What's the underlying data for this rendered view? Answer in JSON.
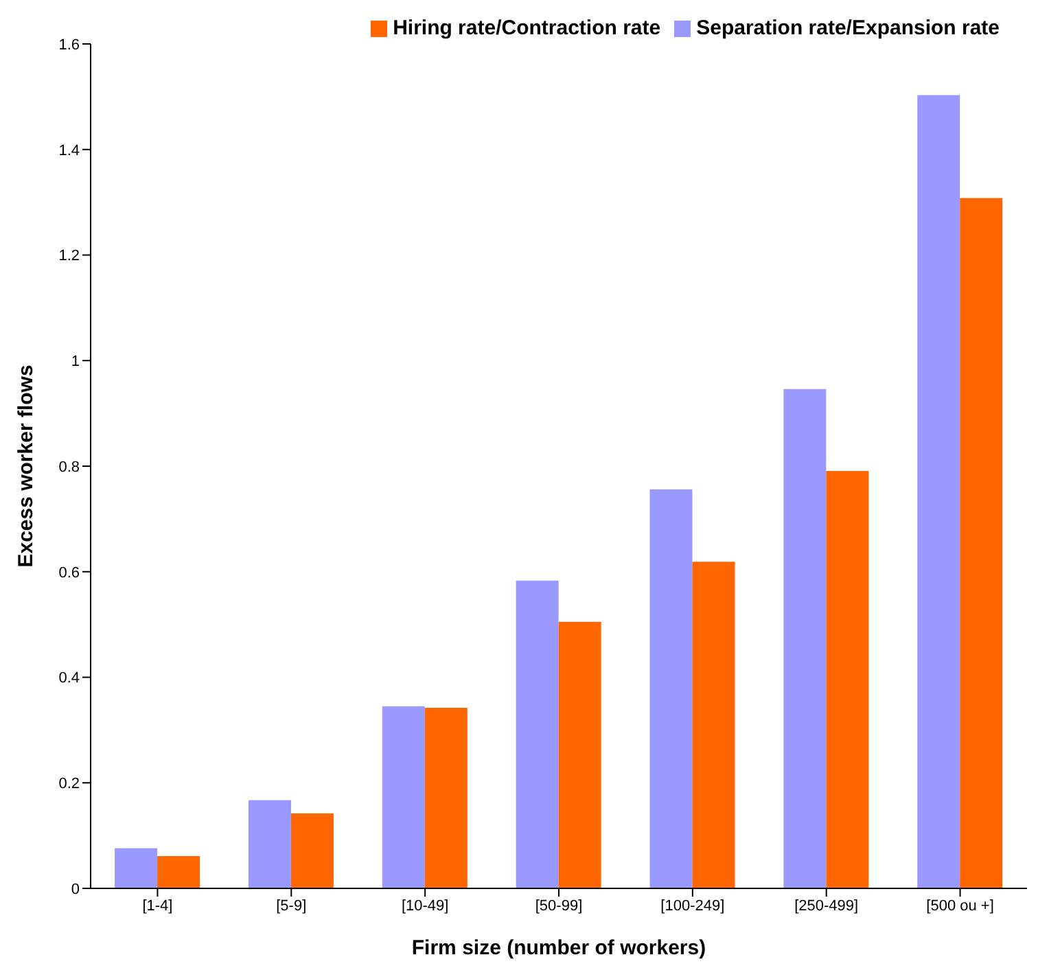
{
  "chart_data": {
    "type": "bar",
    "xlabel": "Firm size (number of workers)",
    "ylabel": "Excess worker flows",
    "categories": [
      "[1-4]",
      "[5-9]",
      "[10-49]",
      "[50-99]",
      "[100-249]",
      "[250-499]",
      "[500 ou +]"
    ],
    "series": [
      {
        "name": "Separation rate/Expansion rate",
        "color": "#9999ff",
        "values": [
          0.076,
          0.167,
          0.345,
          0.583,
          0.756,
          0.946,
          1.503
        ]
      },
      {
        "name": "Hiring rate/Contraction rate",
        "color": "#ff6600",
        "values": [
          0.061,
          0.142,
          0.342,
          0.505,
          0.619,
          0.791,
          1.308
        ]
      }
    ],
    "ylim": [
      0,
      1.6
    ],
    "yticks": [
      0,
      0.2,
      0.4,
      0.6,
      0.8,
      1,
      1.2,
      1.4,
      1.6
    ],
    "grid": false,
    "legend": "top right"
  }
}
